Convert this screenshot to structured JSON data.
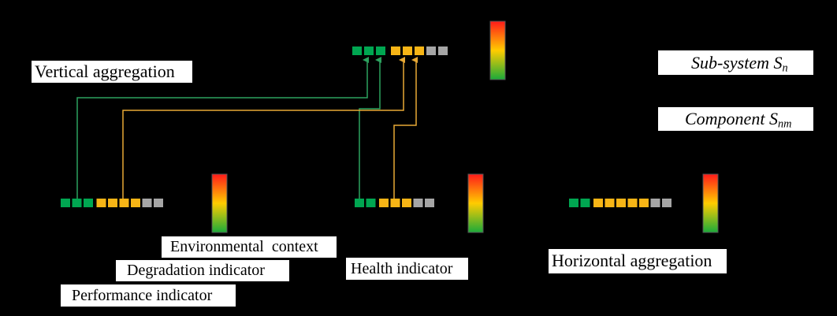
{
  "labels": {
    "vertical_aggregation": "Vertical aggregation",
    "subsystem_prefix": "Sub-system S",
    "subsystem_sub": "n",
    "component_prefix": "Component S",
    "component_sub": "nm",
    "environmental_context": "Environmental  context",
    "degradation_indicator": "Degradation indicator",
    "performance_indicator": "Performance indicator",
    "health_indicator": "Health indicator",
    "horizontal_aggregation": "Horizontal aggregation"
  },
  "colors": {
    "background": "#000000",
    "green": "#00a651",
    "yellow": "#f7b516",
    "gray": "#a6a6a6",
    "green_line": "#2ca25f",
    "yellow_line": "#e8a935",
    "scale_top": "#ff1a1a",
    "scale_mid": "#ffcc00",
    "scale_bottom": "#1aaa3a"
  },
  "indicator_strips": {
    "subsystem": [
      "green",
      "green",
      "green",
      "yellow",
      "yellow",
      "yellow",
      "gray",
      "gray"
    ],
    "component_1": [
      "green",
      "green",
      "green",
      "yellow",
      "yellow",
      "yellow",
      "yellow",
      "gray",
      "gray"
    ],
    "component_2": [
      "green",
      "green",
      "yellow",
      "yellow",
      "yellow",
      "gray",
      "gray"
    ],
    "component_3": [
      "green",
      "green",
      "yellow",
      "yellow",
      "yellow",
      "yellow",
      "yellow",
      "gray",
      "gray"
    ]
  }
}
